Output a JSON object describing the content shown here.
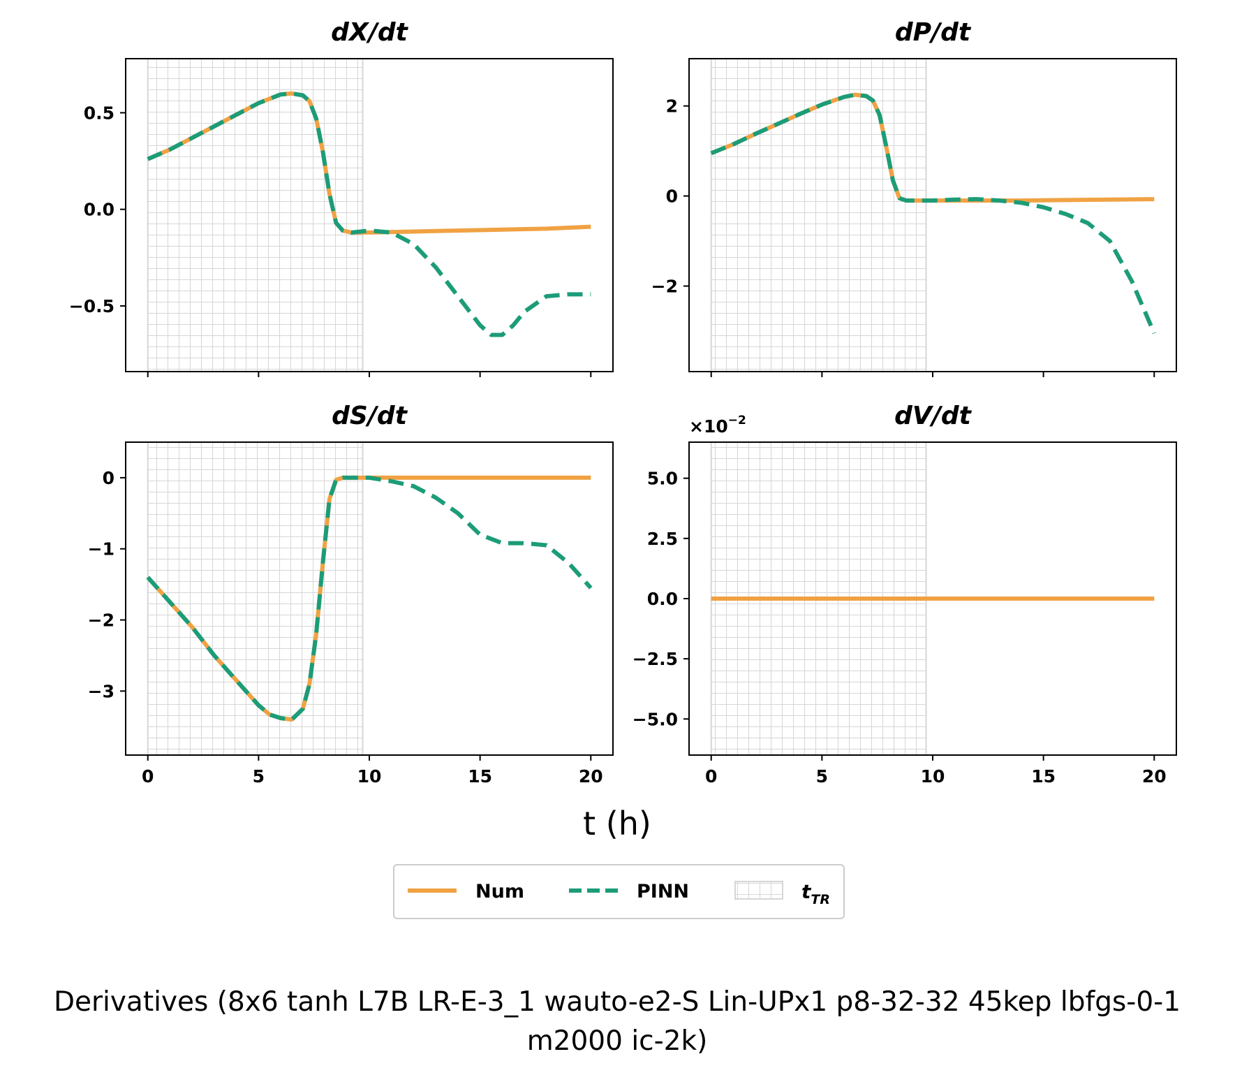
{
  "figure": {
    "xlabel": "t (h)",
    "caption_line1": "Derivatives (8x6 tanh L7B LR-E-3_1 wauto-e2-S Lin-UPx1 p8-32-32 45kep lbfgs-0-1",
    "caption_line2": "m2000 ic-2k)"
  },
  "legend": {
    "num_label": "Num",
    "pinn_label": "PINN",
    "ttr_label": "t",
    "ttr_sub": "TR"
  },
  "colors": {
    "num": "#F0A243",
    "pinn": "#1C9C78",
    "grid_region": "#d6d6d6"
  },
  "chart_data": [
    {
      "type": "line",
      "title": "dX/dt",
      "xlim": [
        -1,
        21
      ],
      "ylim": [
        -0.84,
        0.78
      ],
      "xticks": [
        "0",
        "5",
        "10",
        "15",
        "20"
      ],
      "show_xticklabels": false,
      "yticks": [
        {
          "v": 0.5,
          "label": "0.5"
        },
        {
          "v": 0.0,
          "label": "0.0"
        },
        {
          "v": -0.5,
          "label": "−0.5"
        }
      ],
      "shaded_region": [
        0,
        9.7
      ],
      "series": [
        {
          "name": "Num",
          "x": [
            0,
            1,
            2,
            3,
            4,
            5,
            6,
            6.5,
            7,
            7.3,
            7.6,
            7.9,
            8.2,
            8.5,
            8.8,
            9.2,
            10,
            12,
            14,
            16,
            18,
            20
          ],
          "y": [
            0.26,
            0.31,
            0.37,
            0.43,
            0.49,
            0.55,
            0.595,
            0.6,
            0.59,
            0.56,
            0.47,
            0.3,
            0.08,
            -0.07,
            -0.11,
            -0.12,
            -0.12,
            -0.115,
            -0.11,
            -0.105,
            -0.1,
            -0.09
          ]
        },
        {
          "name": "PINN",
          "x": [
            0,
            1,
            2,
            3,
            4,
            5,
            6,
            6.5,
            7,
            7.3,
            7.6,
            7.9,
            8.2,
            8.5,
            8.8,
            9.2,
            10,
            11,
            12,
            13,
            14,
            15,
            15.5,
            16,
            16.5,
            17,
            18,
            19,
            20
          ],
          "y": [
            0.26,
            0.31,
            0.37,
            0.43,
            0.49,
            0.55,
            0.595,
            0.6,
            0.59,
            0.56,
            0.47,
            0.3,
            0.08,
            -0.07,
            -0.11,
            -0.12,
            -0.11,
            -0.12,
            -0.18,
            -0.3,
            -0.45,
            -0.6,
            -0.65,
            -0.65,
            -0.6,
            -0.53,
            -0.45,
            -0.44,
            -0.44
          ]
        }
      ]
    },
    {
      "type": "line",
      "title": "dP/dt",
      "xlim": [
        -1,
        21
      ],
      "ylim": [
        -3.9,
        3.05
      ],
      "xticks": [
        "0",
        "5",
        "10",
        "15",
        "20"
      ],
      "show_xticklabels": false,
      "yticks": [
        {
          "v": 2,
          "label": "2"
        },
        {
          "v": 0,
          "label": "0"
        },
        {
          "v": -2,
          "label": "−2"
        }
      ],
      "shaded_region": [
        0,
        9.7
      ],
      "series": [
        {
          "name": "Num",
          "x": [
            0,
            1,
            2,
            3,
            4,
            5,
            6,
            6.5,
            7,
            7.3,
            7.6,
            7.9,
            8.2,
            8.5,
            8.8,
            9.2,
            10,
            12,
            14,
            16,
            18,
            20
          ],
          "y": [
            0.95,
            1.15,
            1.38,
            1.6,
            1.82,
            2.03,
            2.2,
            2.25,
            2.22,
            2.12,
            1.8,
            1.1,
            0.35,
            -0.05,
            -0.1,
            -0.1,
            -0.1,
            -0.1,
            -0.1,
            -0.09,
            -0.08,
            -0.07
          ]
        },
        {
          "name": "PINN",
          "x": [
            0,
            1,
            2,
            3,
            4,
            5,
            6,
            6.5,
            7,
            7.3,
            7.6,
            7.9,
            8.2,
            8.5,
            8.8,
            9.2,
            10,
            11,
            12,
            13,
            14,
            15,
            16,
            17,
            18,
            19,
            20
          ],
          "y": [
            0.95,
            1.15,
            1.38,
            1.6,
            1.82,
            2.03,
            2.2,
            2.25,
            2.22,
            2.12,
            1.8,
            1.1,
            0.35,
            -0.05,
            -0.1,
            -0.1,
            -0.1,
            -0.08,
            -0.07,
            -0.1,
            -0.15,
            -0.25,
            -0.4,
            -0.6,
            -1.0,
            -1.9,
            -3.05
          ]
        }
      ]
    },
    {
      "type": "line",
      "title": "dS/dt",
      "xlim": [
        -1,
        21
      ],
      "ylim": [
        -3.9,
        0.5
      ],
      "xticks": [
        "0",
        "5",
        "10",
        "15",
        "20"
      ],
      "show_xticklabels": true,
      "yticks": [
        {
          "v": 0,
          "label": "0"
        },
        {
          "v": -1,
          "label": "−1"
        },
        {
          "v": -2,
          "label": "−2"
        },
        {
          "v": -3,
          "label": "−3"
        }
      ],
      "shaded_region": [
        0,
        9.7
      ],
      "series": [
        {
          "name": "Num",
          "x": [
            0,
            1,
            2,
            3,
            4,
            5,
            5.5,
            6,
            6.5,
            7,
            7.3,
            7.6,
            7.9,
            8.2,
            8.5,
            8.8,
            9.2,
            10,
            12,
            14,
            16,
            18,
            20
          ],
          "y": [
            -1.4,
            -1.75,
            -2.1,
            -2.5,
            -2.85,
            -3.2,
            -3.33,
            -3.38,
            -3.4,
            -3.25,
            -2.9,
            -2.2,
            -1.2,
            -0.3,
            -0.03,
            0.0,
            0.0,
            0.0,
            0.0,
            0.0,
            0.0,
            0.0,
            0.0
          ]
        },
        {
          "name": "PINN",
          "x": [
            0,
            1,
            2,
            3,
            4,
            5,
            5.5,
            6,
            6.5,
            7,
            7.3,
            7.6,
            7.9,
            8.2,
            8.5,
            8.8,
            9.2,
            10,
            11,
            12,
            13,
            14,
            15,
            16,
            17,
            18,
            19,
            20
          ],
          "y": [
            -1.4,
            -1.75,
            -2.1,
            -2.5,
            -2.85,
            -3.2,
            -3.33,
            -3.38,
            -3.4,
            -3.25,
            -2.9,
            -2.2,
            -1.2,
            -0.3,
            -0.03,
            0.0,
            0.0,
            0.0,
            -0.05,
            -0.12,
            -0.28,
            -0.5,
            -0.8,
            -0.92,
            -0.92,
            -0.95,
            -1.2,
            -1.55
          ]
        }
      ]
    },
    {
      "type": "line",
      "title": "dV/dt",
      "xlim": [
        -1,
        21
      ],
      "ylim": [
        -6.5,
        6.5
      ],
      "offset_text": "×10",
      "offset_exp": "−2",
      "xticks": [
        "0",
        "5",
        "10",
        "15",
        "20"
      ],
      "show_xticklabels": true,
      "yticks": [
        {
          "v": 5,
          "label": "5.0"
        },
        {
          "v": 2.5,
          "label": "2.5"
        },
        {
          "v": 0,
          "label": "0.0"
        },
        {
          "v": -2.5,
          "label": "−2.5"
        },
        {
          "v": -5,
          "label": "−5.0"
        }
      ],
      "shaded_region": [
        0,
        9.7
      ],
      "series": [
        {
          "name": "Num",
          "x": [
            0,
            20
          ],
          "y": [
            0,
            0
          ]
        }
      ]
    }
  ]
}
